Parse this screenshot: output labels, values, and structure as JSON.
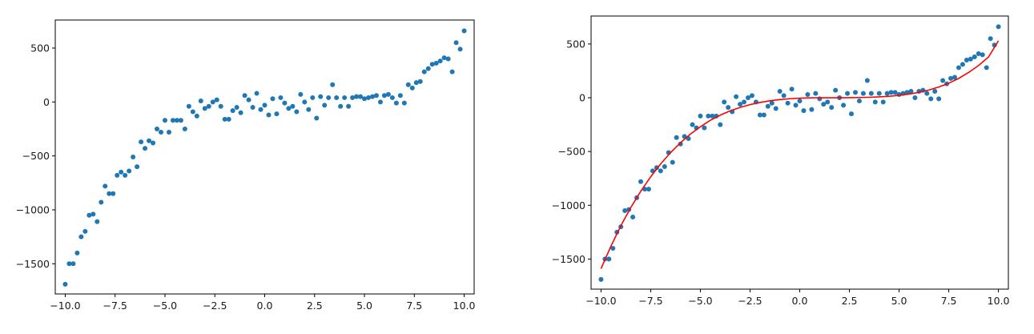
{
  "chart_data": [
    {
      "type": "scatter",
      "title": "",
      "xlabel": "",
      "ylabel": "",
      "xlim": [
        -10.5,
        10.5
      ],
      "ylim": [
        -1780,
        760
      ],
      "xticks": [
        -10.0,
        -7.5,
        -5.0,
        -2.5,
        0.0,
        2.5,
        5.0,
        7.5,
        10.0
      ],
      "xtick_labels": [
        "−10.0",
        "−7.5",
        "−5.0",
        "−2.5",
        "0.0",
        "2.5",
        "5.0",
        "7.5",
        "10.0"
      ],
      "yticks": [
        -1500,
        -1000,
        -500,
        0,
        500
      ],
      "ytick_labels": [
        "−1500",
        "−1000",
        "−500",
        "0",
        "500"
      ],
      "grid": false,
      "series": [
        {
          "marker_color": "#1f77b4",
          "points": [
            [
              -10.0,
              -1690
            ],
            [
              -9.8,
              -1500
            ],
            [
              -9.6,
              -1500
            ],
            [
              -9.4,
              -1400
            ],
            [
              -9.2,
              -1250
            ],
            [
              -9.0,
              -1200
            ],
            [
              -8.8,
              -1050
            ],
            [
              -8.6,
              -1040
            ],
            [
              -8.4,
              -1110
            ],
            [
              -8.2,
              -930
            ],
            [
              -8.0,
              -780
            ],
            [
              -7.8,
              -850
            ],
            [
              -7.6,
              -850
            ],
            [
              -7.4,
              -680
            ],
            [
              -7.2,
              -650
            ],
            [
              -7.0,
              -680
            ],
            [
              -6.8,
              -640
            ],
            [
              -6.6,
              -510
            ],
            [
              -6.4,
              -600
            ],
            [
              -6.2,
              -370
            ],
            [
              -6.0,
              -430
            ],
            [
              -5.8,
              -360
            ],
            [
              -5.6,
              -380
            ],
            [
              -5.4,
              -250
            ],
            [
              -5.2,
              -280
            ],
            [
              -5.0,
              -170
            ],
            [
              -4.8,
              -280
            ],
            [
              -4.6,
              -170
            ],
            [
              -4.4,
              -170
            ],
            [
              -4.2,
              -170
            ],
            [
              -4.0,
              -250
            ],
            [
              -3.8,
              -40
            ],
            [
              -3.6,
              -90
            ],
            [
              -3.4,
              -130
            ],
            [
              -3.2,
              10
            ],
            [
              -3.0,
              -60
            ],
            [
              -2.8,
              -40
            ],
            [
              -2.6,
              0
            ],
            [
              -2.4,
              20
            ],
            [
              -2.2,
              -40
            ],
            [
              -2.0,
              -160
            ],
            [
              -1.8,
              -160
            ],
            [
              -1.6,
              -80
            ],
            [
              -1.4,
              -50
            ],
            [
              -1.2,
              -100
            ],
            [
              -1.0,
              60
            ],
            [
              -0.8,
              20
            ],
            [
              -0.6,
              -50
            ],
            [
              -0.4,
              80
            ],
            [
              -0.2,
              -70
            ],
            [
              0.0,
              -30
            ],
            [
              0.2,
              -120
            ],
            [
              0.4,
              30
            ],
            [
              0.6,
              -110
            ],
            [
              0.8,
              40
            ],
            [
              1.0,
              -10
            ],
            [
              1.2,
              -60
            ],
            [
              1.4,
              -40
            ],
            [
              1.6,
              -90
            ],
            [
              1.8,
              70
            ],
            [
              2.0,
              0
            ],
            [
              2.2,
              -70
            ],
            [
              2.4,
              40
            ],
            [
              2.6,
              -150
            ],
            [
              2.8,
              50
            ],
            [
              3.0,
              -30
            ],
            [
              3.2,
              40
            ],
            [
              3.4,
              160
            ],
            [
              3.6,
              40
            ],
            [
              3.8,
              -40
            ],
            [
              4.0,
              40
            ],
            [
              4.2,
              -40
            ],
            [
              4.4,
              40
            ],
            [
              4.6,
              50
            ],
            [
              4.8,
              50
            ],
            [
              5.0,
              30
            ],
            [
              5.2,
              40
            ],
            [
              5.4,
              50
            ],
            [
              5.6,
              60
            ],
            [
              5.8,
              0
            ],
            [
              6.0,
              60
            ],
            [
              6.2,
              70
            ],
            [
              6.4,
              40
            ],
            [
              6.6,
              -10
            ],
            [
              6.8,
              60
            ],
            [
              7.0,
              -10
            ],
            [
              7.2,
              160
            ],
            [
              7.4,
              130
            ],
            [
              7.6,
              180
            ],
            [
              7.8,
              190
            ],
            [
              8.0,
              280
            ],
            [
              8.2,
              310
            ],
            [
              8.4,
              350
            ],
            [
              8.6,
              360
            ],
            [
              8.8,
              380
            ],
            [
              9.0,
              410
            ],
            [
              9.2,
              400
            ],
            [
              9.4,
              280
            ],
            [
              9.6,
              550
            ],
            [
              9.8,
              490
            ],
            [
              10.0,
              660
            ]
          ]
        }
      ]
    },
    {
      "type": "scatter",
      "title": "",
      "xlabel": "",
      "ylabel": "",
      "xlim": [
        -10.5,
        10.5
      ],
      "ylim": [
        -1780,
        760
      ],
      "xticks": [
        -10.0,
        -7.5,
        -5.0,
        -2.5,
        0.0,
        2.5,
        5.0,
        7.5,
        10.0
      ],
      "xtick_labels": [
        "−10.0",
        "−7.5",
        "−5.0",
        "−2.5",
        "0.0",
        "2.5",
        "5.0",
        "7.5",
        "10.0"
      ],
      "yticks": [
        -1500,
        -1000,
        -500,
        0,
        500
      ],
      "ytick_labels": [
        "−1500",
        "−1000",
        "−500",
        "0",
        "500"
      ],
      "grid": false,
      "series": [
        {
          "marker_color": "#1f77b4",
          "points": [
            [
              -10.0,
              -1690
            ],
            [
              -9.8,
              -1500
            ],
            [
              -9.6,
              -1500
            ],
            [
              -9.4,
              -1400
            ],
            [
              -9.2,
              -1250
            ],
            [
              -9.0,
              -1200
            ],
            [
              -8.8,
              -1050
            ],
            [
              -8.6,
              -1040
            ],
            [
              -8.4,
              -1110
            ],
            [
              -8.2,
              -930
            ],
            [
              -8.0,
              -780
            ],
            [
              -7.8,
              -850
            ],
            [
              -7.6,
              -850
            ],
            [
              -7.4,
              -680
            ],
            [
              -7.2,
              -650
            ],
            [
              -7.0,
              -680
            ],
            [
              -6.8,
              -640
            ],
            [
              -6.6,
              -510
            ],
            [
              -6.4,
              -600
            ],
            [
              -6.2,
              -370
            ],
            [
              -6.0,
              -430
            ],
            [
              -5.8,
              -360
            ],
            [
              -5.6,
              -380
            ],
            [
              -5.4,
              -250
            ],
            [
              -5.2,
              -280
            ],
            [
              -5.0,
              -170
            ],
            [
              -4.8,
              -280
            ],
            [
              -4.6,
              -170
            ],
            [
              -4.4,
              -170
            ],
            [
              -4.2,
              -170
            ],
            [
              -4.0,
              -250
            ],
            [
              -3.8,
              -40
            ],
            [
              -3.6,
              -90
            ],
            [
              -3.4,
              -130
            ],
            [
              -3.2,
              10
            ],
            [
              -3.0,
              -60
            ],
            [
              -2.8,
              -40
            ],
            [
              -2.6,
              0
            ],
            [
              -2.4,
              20
            ],
            [
              -2.2,
              -40
            ],
            [
              -2.0,
              -160
            ],
            [
              -1.8,
              -160
            ],
            [
              -1.6,
              -80
            ],
            [
              -1.4,
              -50
            ],
            [
              -1.2,
              -100
            ],
            [
              -1.0,
              60
            ],
            [
              -0.8,
              20
            ],
            [
              -0.6,
              -50
            ],
            [
              -0.4,
              80
            ],
            [
              -0.2,
              -70
            ],
            [
              0.0,
              -30
            ],
            [
              0.2,
              -120
            ],
            [
              0.4,
              30
            ],
            [
              0.6,
              -110
            ],
            [
              0.8,
              40
            ],
            [
              1.0,
              -10
            ],
            [
              1.2,
              -60
            ],
            [
              1.4,
              -40
            ],
            [
              1.6,
              -90
            ],
            [
              1.8,
              70
            ],
            [
              2.0,
              0
            ],
            [
              2.2,
              -70
            ],
            [
              2.4,
              40
            ],
            [
              2.6,
              -150
            ],
            [
              2.8,
              50
            ],
            [
              3.0,
              -30
            ],
            [
              3.2,
              40
            ],
            [
              3.4,
              160
            ],
            [
              3.6,
              40
            ],
            [
              3.8,
              -40
            ],
            [
              4.0,
              40
            ],
            [
              4.2,
              -40
            ],
            [
              4.4,
              40
            ],
            [
              4.6,
              50
            ],
            [
              4.8,
              50
            ],
            [
              5.0,
              30
            ],
            [
              5.2,
              40
            ],
            [
              5.4,
              50
            ],
            [
              5.6,
              60
            ],
            [
              5.8,
              0
            ],
            [
              6.0,
              60
            ],
            [
              6.2,
              70
            ],
            [
              6.4,
              40
            ],
            [
              6.6,
              -10
            ],
            [
              6.8,
              60
            ],
            [
              7.0,
              -10
            ],
            [
              7.2,
              160
            ],
            [
              7.4,
              130
            ],
            [
              7.6,
              180
            ],
            [
              7.8,
              190
            ],
            [
              8.0,
              280
            ],
            [
              8.2,
              310
            ],
            [
              8.4,
              350
            ],
            [
              8.6,
              360
            ],
            [
              8.8,
              380
            ],
            [
              9.0,
              410
            ],
            [
              9.2,
              400
            ],
            [
              9.4,
              280
            ],
            [
              9.6,
              550
            ],
            [
              9.8,
              490
            ],
            [
              10.0,
              660
            ]
          ]
        },
        {
          "type": "line",
          "line_color": "#ff0000",
          "points": [
            [
              -10.0,
              -1590
            ],
            [
              -9.5,
              -1380
            ],
            [
              -9.0,
              -1190
            ],
            [
              -8.5,
              -1020
            ],
            [
              -8.0,
              -870
            ],
            [
              -7.5,
              -735
            ],
            [
              -7.0,
              -615
            ],
            [
              -6.5,
              -510
            ],
            [
              -6.0,
              -418
            ],
            [
              -5.5,
              -338
            ],
            [
              -5.0,
              -270
            ],
            [
              -4.5,
              -210
            ],
            [
              -4.0,
              -162
            ],
            [
              -3.5,
              -122
            ],
            [
              -3.0,
              -90
            ],
            [
              -2.5,
              -64
            ],
            [
              -2.0,
              -44
            ],
            [
              -1.5,
              -28
            ],
            [
              -1.0,
              -17
            ],
            [
              -0.5,
              -9
            ],
            [
              0.0,
              -4
            ],
            [
              0.5,
              -1
            ],
            [
              1.0,
              0
            ],
            [
              1.5,
              0
            ],
            [
              2.0,
              0
            ],
            [
              2.5,
              1
            ],
            [
              3.0,
              2
            ],
            [
              3.5,
              4
            ],
            [
              4.0,
              8
            ],
            [
              4.5,
              14
            ],
            [
              5.0,
              22
            ],
            [
              5.5,
              34
            ],
            [
              6.0,
              50
            ],
            [
              6.5,
              72
            ],
            [
              7.0,
              100
            ],
            [
              7.5,
              135
            ],
            [
              8.0,
              180
            ],
            [
              8.5,
              235
            ],
            [
              9.0,
              300
            ],
            [
              9.5,
              378
            ],
            [
              10.0,
              530
            ]
          ]
        }
      ]
    }
  ]
}
